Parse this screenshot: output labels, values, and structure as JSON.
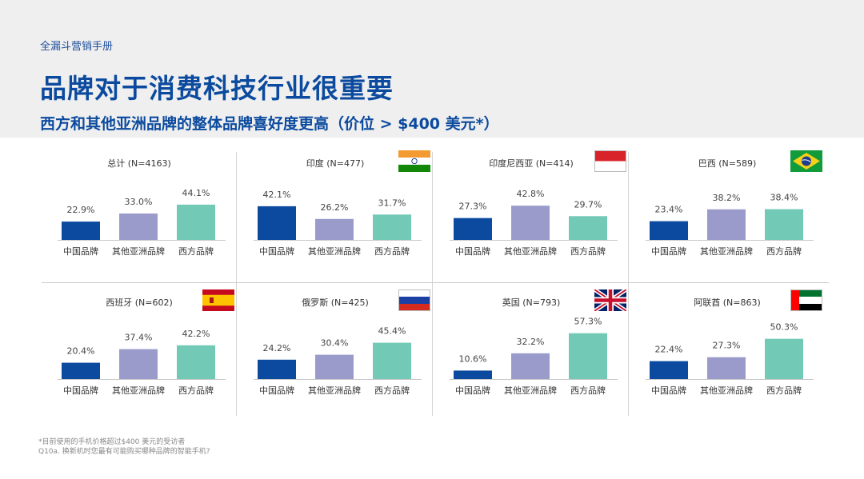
{
  "header": {
    "kicker": "全漏斗营销手册",
    "title": "品牌对于消费科技行业很重要",
    "subtitle": "西方和其他亚洲品牌的整体品牌喜好度更高（价位 > $400 美元*）"
  },
  "colors": {
    "series": [
      "#0b4a9e",
      "#9b9bcb",
      "#72c9b6"
    ],
    "title": "#0b4a9e"
  },
  "chart_data": [
    {
      "type": "bar",
      "title": "总计 (N=4163)",
      "categories": [
        "中国品牌",
        "其他亚洲品牌",
        "西方品牌"
      ],
      "values": [
        22.9,
        33.0,
        44.1
      ],
      "labels": [
        "22.9%",
        "33.0%",
        "44.1%"
      ],
      "flag": "none"
    },
    {
      "type": "bar",
      "title": "印度 (N=477)",
      "categories": [
        "中国品牌",
        "其他亚洲品牌",
        "西方品牌"
      ],
      "values": [
        42.1,
        26.2,
        31.7
      ],
      "labels": [
        "42.1%",
        "26.2%",
        "31.7%"
      ],
      "flag": "india-flag"
    },
    {
      "type": "bar",
      "title": "印度尼西亚 (N=414)",
      "categories": [
        "中国品牌",
        "其他亚洲品牌",
        "西方品牌"
      ],
      "values": [
        27.3,
        42.8,
        29.7
      ],
      "labels": [
        "27.3%",
        "42.8%",
        "29.7%"
      ],
      "flag": "indonesia-flag"
    },
    {
      "type": "bar",
      "title": "巴西 (N=589)",
      "categories": [
        "中国品牌",
        "其他亚洲品牌",
        "西方品牌"
      ],
      "values": [
        23.4,
        38.2,
        38.4
      ],
      "labels": [
        "23.4%",
        "38.2%",
        "38.4%"
      ],
      "flag": "brazil-flag"
    },
    {
      "type": "bar",
      "title": "西班牙 (N=602)",
      "categories": [
        "中国品牌",
        "其他亚洲品牌",
        "西方品牌"
      ],
      "values": [
        20.4,
        37.4,
        42.2
      ],
      "labels": [
        "20.4%",
        "37.4%",
        "42.2%"
      ],
      "flag": "spain-flag"
    },
    {
      "type": "bar",
      "title": "俄罗斯 (N=425)",
      "categories": [
        "中国品牌",
        "其他亚洲品牌",
        "西方品牌"
      ],
      "values": [
        24.2,
        30.4,
        45.4
      ],
      "labels": [
        "24.2%",
        "30.4%",
        "45.4%"
      ],
      "flag": "russia-flag"
    },
    {
      "type": "bar",
      "title": "英国 (N=793)",
      "categories": [
        "中国品牌",
        "其他亚洲品牌",
        "西方品牌"
      ],
      "values": [
        10.6,
        32.2,
        57.3
      ],
      "labels": [
        "10.6%",
        "32.2%",
        "57.3%"
      ],
      "flag": "uk-flag"
    },
    {
      "type": "bar",
      "title": "阿联酋 (N=863)",
      "categories": [
        "中国品牌",
        "其他亚洲品牌",
        "西方品牌"
      ],
      "values": [
        22.4,
        27.3,
        50.3
      ],
      "labels": [
        "22.4%",
        "27.3%",
        "50.3%"
      ],
      "flag": "uae-flag"
    }
  ],
  "footnotes": [
    "*目前使用的手机价格超过$400 美元的受访者",
    "Q10a. 换新机时您最有可能购买哪种品牌的智能手机?"
  ]
}
